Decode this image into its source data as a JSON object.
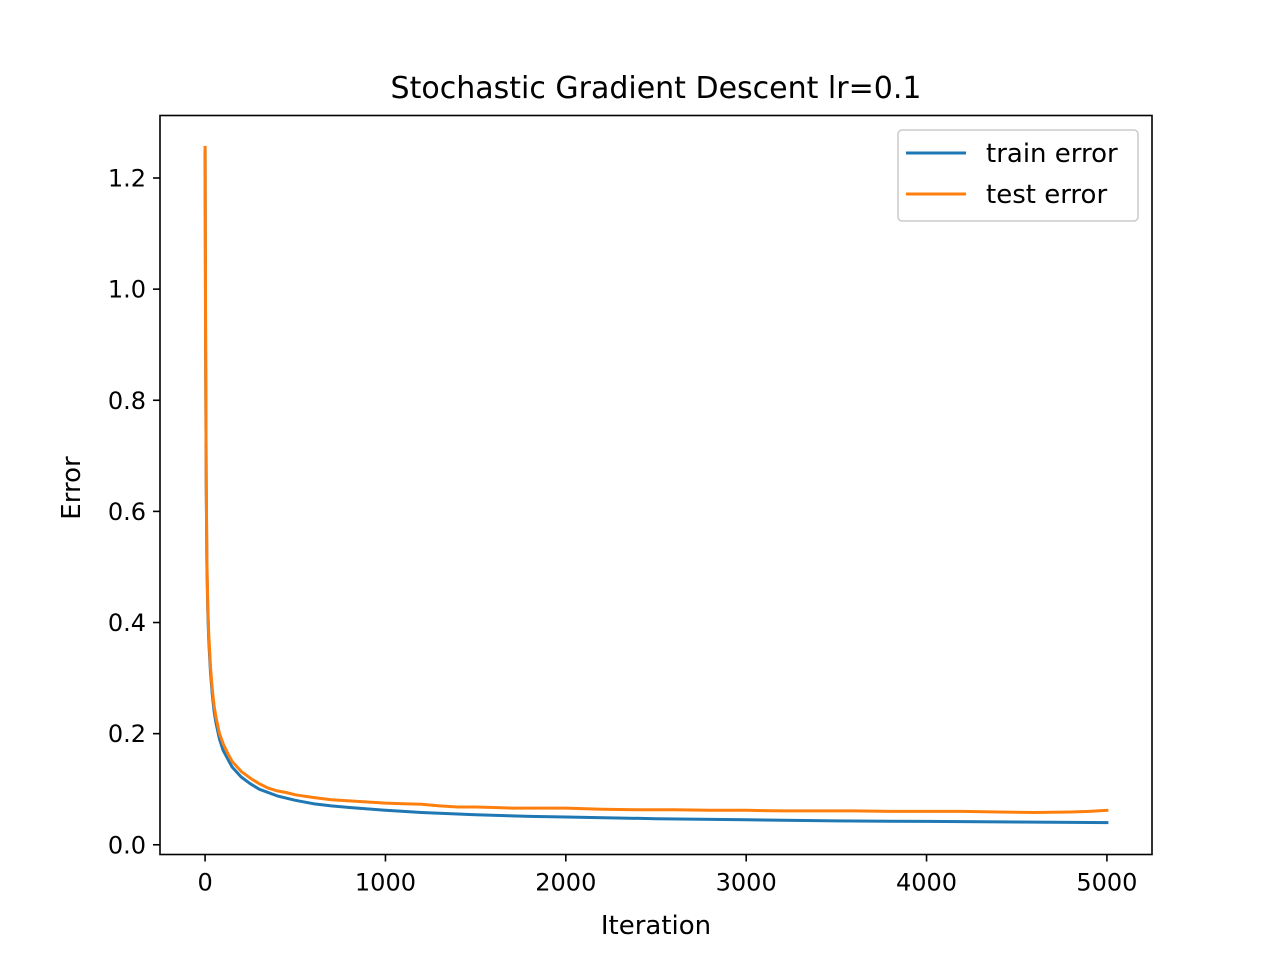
{
  "chart_data": {
    "type": "line",
    "title": "Stochastic Gradient Descent lr=0.1",
    "xlabel": "Iteration",
    "ylabel": "Error",
    "xlim": [
      -250,
      5250
    ],
    "ylim": [
      -0.0175,
      1.3125
    ],
    "xticks": [
      0,
      1000,
      2000,
      3000,
      4000,
      5000
    ],
    "xtick_labels": [
      "0",
      "1000",
      "2000",
      "3000",
      "4000",
      "5000"
    ],
    "yticks": [
      0.0,
      0.2,
      0.4,
      0.6,
      0.8,
      1.0,
      1.2
    ],
    "ytick_labels": [
      "0.0",
      "0.2",
      "0.4",
      "0.6",
      "0.8",
      "1.0",
      "1.2"
    ],
    "grid": false,
    "legend_position": "upper right",
    "series": [
      {
        "name": "train error",
        "color": "#1f77b4",
        "x": [
          0,
          3,
          6,
          10,
          15,
          20,
          30,
          40,
          50,
          60,
          80,
          100,
          125,
          150,
          200,
          250,
          300,
          400,
          500,
          600,
          700,
          800,
          1000,
          1200,
          1500,
          1800,
          2000,
          2500,
          3000,
          3500,
          4000,
          4500,
          5000
        ],
        "y": [
          1.25,
          0.9,
          0.65,
          0.5,
          0.42,
          0.37,
          0.31,
          0.27,
          0.24,
          0.22,
          0.19,
          0.17,
          0.155,
          0.14,
          0.122,
          0.11,
          0.1,
          0.088,
          0.08,
          0.074,
          0.07,
          0.067,
          0.062,
          0.058,
          0.054,
          0.051,
          0.05,
          0.047,
          0.045,
          0.043,
          0.042,
          0.041,
          0.04
        ]
      },
      {
        "name": "test error",
        "color": "#ff7f0e",
        "x": [
          0,
          3,
          6,
          10,
          15,
          20,
          30,
          40,
          50,
          60,
          80,
          100,
          125,
          150,
          200,
          250,
          300,
          350,
          400,
          450,
          500,
          600,
          700,
          800,
          900,
          1000,
          1100,
          1200,
          1300,
          1400,
          1500,
          1600,
          1700,
          1800,
          1900,
          2000,
          2200,
          2400,
          2600,
          2800,
          3000,
          3200,
          3400,
          3600,
          3800,
          4000,
          4200,
          4400,
          4600,
          4800,
          4900,
          5000
        ],
        "y": [
          1.255,
          0.91,
          0.66,
          0.51,
          0.43,
          0.38,
          0.32,
          0.28,
          0.25,
          0.23,
          0.2,
          0.182,
          0.165,
          0.15,
          0.132,
          0.12,
          0.11,
          0.102,
          0.097,
          0.094,
          0.09,
          0.085,
          0.081,
          0.079,
          0.077,
          0.075,
          0.074,
          0.073,
          0.07,
          0.068,
          0.068,
          0.067,
          0.066,
          0.066,
          0.066,
          0.066,
          0.064,
          0.063,
          0.063,
          0.062,
          0.062,
          0.061,
          0.061,
          0.061,
          0.06,
          0.06,
          0.06,
          0.059,
          0.058,
          0.059,
          0.06,
          0.062
        ]
      }
    ]
  }
}
